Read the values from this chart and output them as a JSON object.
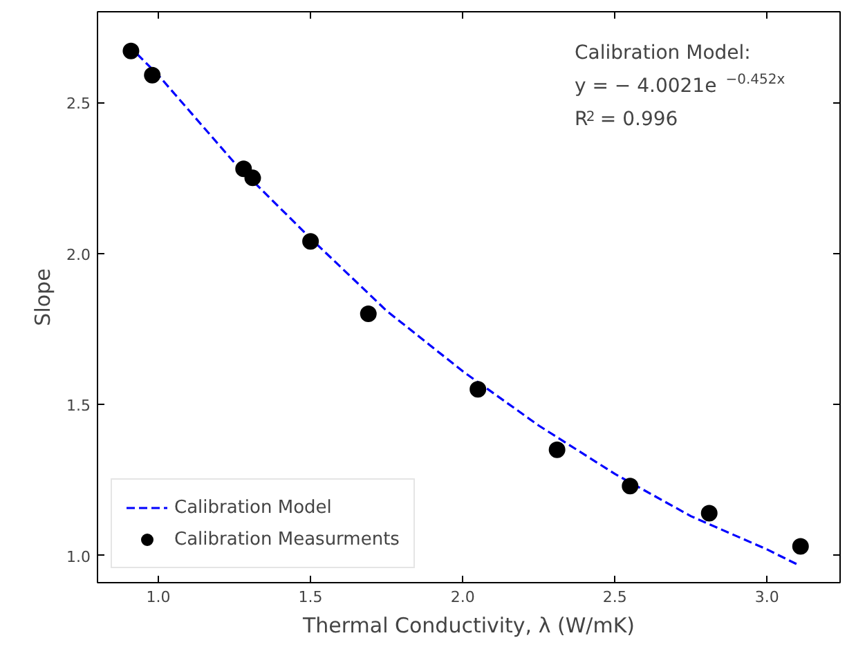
{
  "chart_data": {
    "type": "scatter",
    "xlabel": "Thermal Conductivity, λ (W/mK)",
    "ylabel": "Slope",
    "xlim": [
      0.8,
      3.24
    ],
    "ylim": [
      0.91,
      2.8
    ],
    "xticks": [
      {
        "value": 1,
        "label": "1.0"
      },
      1.5,
      {
        "value": 2,
        "label": "2.0"
      },
      2.5,
      {
        "value": 3,
        "label": "3.0"
      }
    ],
    "yticks": [
      {
        "value": 1,
        "label": "1.0"
      },
      1.5,
      {
        "value": 2,
        "label": "2.0"
      },
      2.5
    ],
    "grid": false,
    "legend": "bottom left",
    "series": [
      {
        "name": "Calibration Model",
        "type": "line",
        "line_style": "dashed",
        "marker": "none",
        "color": "#0000ff",
        "x": [
          0.93,
          1.0,
          1.25,
          1.5,
          1.75,
          2.0,
          2.25,
          2.5,
          2.75,
          3.0,
          3.1
        ],
        "values": [
          2.66,
          2.59,
          2.3,
          2.05,
          1.81,
          1.61,
          1.43,
          1.27,
          1.13,
          1.02,
          0.97
        ]
      },
      {
        "name": "Calibration Measurments",
        "type": "scatter",
        "marker": "circle",
        "color": "#000000",
        "x": [
          0.91,
          0.98,
          1.28,
          1.31,
          1.5,
          1.69,
          2.05,
          2.31,
          2.55,
          2.81,
          3.11
        ],
        "values": [
          2.67,
          2.59,
          2.28,
          2.25,
          2.04,
          1.8,
          1.55,
          1.35,
          1.23,
          1.14,
          1.03
        ]
      }
    ],
    "annotations": [
      "Calibration Model:",
      "y = − 4.0021e$^{−0.452x}$",
      "R$^{2}$ = 0.996"
    ]
  }
}
